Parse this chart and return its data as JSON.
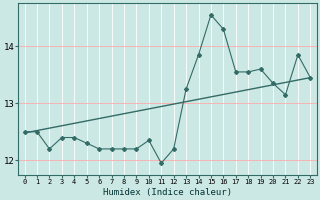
{
  "xlabel": "Humidex (Indice chaleur)",
  "ylabel": "",
  "bg_color": "#cce8e4",
  "grid_color": "#ffffff",
  "line_color": "#336b66",
  "trend_color": "#336b66",
  "xlim": [
    -0.5,
    23.5
  ],
  "ylim": [
    11.75,
    14.75
  ],
  "yticks": [
    12,
    13,
    14
  ],
  "xticks": [
    0,
    1,
    2,
    3,
    4,
    5,
    6,
    7,
    8,
    9,
    10,
    11,
    12,
    13,
    14,
    15,
    16,
    17,
    18,
    19,
    20,
    21,
    22,
    23
  ],
  "jagged_x": [
    0,
    1,
    2,
    3,
    4,
    5,
    6,
    7,
    8,
    9,
    10,
    11,
    12,
    13,
    14,
    15,
    16,
    17,
    18,
    19,
    20,
    21,
    22,
    23
  ],
  "jagged_y": [
    12.5,
    12.5,
    12.2,
    12.4,
    12.4,
    12.3,
    12.2,
    12.2,
    12.2,
    12.2,
    12.35,
    11.95,
    12.2,
    13.25,
    13.85,
    14.55,
    14.3,
    13.55,
    13.55,
    13.6,
    13.35,
    13.15,
    13.85,
    13.45
  ],
  "trend_x": [
    0,
    23
  ],
  "trend_y": [
    12.48,
    13.45
  ],
  "fig_width": 3.2,
  "fig_height": 2.0,
  "dpi": 100
}
